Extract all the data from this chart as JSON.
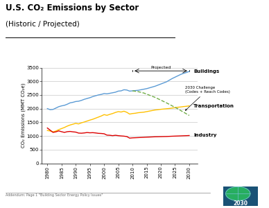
{
  "title_main": "U.S. CO₂ Emissions by Sector",
  "title_sub": "(Historic / Projected)",
  "ylabel": "CO₂ Emissions (MMT CO₂e)",
  "footer": "Addendum: Page 1 \"Building Sector Energy Policy Issues\"",
  "xlim": [
    1978,
    2033
  ],
  "ylim": [
    0,
    3500
  ],
  "yticks": [
    0,
    500,
    1000,
    1500,
    2000,
    2500,
    3000,
    3500
  ],
  "xticks": [
    1980,
    1985,
    1990,
    1995,
    2000,
    2005,
    2010,
    2015,
    2020,
    2025,
    2030
  ],
  "projected_start": 2010,
  "buildings_years": [
    1980,
    1981,
    1982,
    1983,
    1984,
    1985,
    1986,
    1987,
    1988,
    1989,
    1990,
    1991,
    1992,
    1993,
    1994,
    1995,
    1996,
    1997,
    1998,
    1999,
    2000,
    2001,
    2002,
    2003,
    2004,
    2005,
    2006,
    2007,
    2008,
    2009,
    2010,
    2011,
    2012,
    2013,
    2014,
    2015,
    2016,
    2017,
    2018,
    2019,
    2020,
    2021,
    2022,
    2023,
    2024,
    2025,
    2026,
    2027,
    2028,
    2029,
    2030
  ],
  "buildings_values": [
    2000,
    1960,
    1970,
    2020,
    2070,
    2100,
    2120,
    2160,
    2210,
    2230,
    2260,
    2270,
    2300,
    2340,
    2370,
    2400,
    2440,
    2470,
    2500,
    2520,
    2550,
    2540,
    2560,
    2580,
    2600,
    2640,
    2650,
    2690,
    2680,
    2640,
    2650,
    2660,
    2670,
    2690,
    2710,
    2730,
    2760,
    2790,
    2820,
    2860,
    2900,
    2940,
    2980,
    3040,
    3100,
    3150,
    3200,
    3250,
    3290,
    3320,
    3360
  ],
  "buildings_color": "#5b9bd5",
  "transportation_years": [
    1980,
    1981,
    1982,
    1983,
    1984,
    1985,
    1986,
    1987,
    1988,
    1989,
    1990,
    1991,
    1992,
    1993,
    1994,
    1995,
    1996,
    1997,
    1998,
    1999,
    2000,
    2001,
    2002,
    2003,
    2004,
    2005,
    2006,
    2007,
    2008,
    2009,
    2010,
    2011,
    2012,
    2013,
    2014,
    2015,
    2016,
    2017,
    2018,
    2019,
    2020,
    2021,
    2022,
    2023,
    2024,
    2025,
    2026,
    2027,
    2028,
    2029,
    2030
  ],
  "transportation_values": [
    1200,
    1180,
    1150,
    1180,
    1230,
    1270,
    1310,
    1360,
    1400,
    1430,
    1460,
    1440,
    1480,
    1510,
    1545,
    1580,
    1610,
    1650,
    1690,
    1730,
    1780,
    1755,
    1790,
    1820,
    1860,
    1890,
    1875,
    1905,
    1865,
    1800,
    1820,
    1830,
    1850,
    1860,
    1870,
    1890,
    1910,
    1930,
    1950,
    1960,
    1975,
    1985,
    1995,
    2005,
    2020,
    2035,
    2050,
    2060,
    2075,
    2085,
    2100
  ],
  "transportation_color": "#ffc000",
  "industry_years": [
    1980,
    1981,
    1982,
    1983,
    1984,
    1985,
    1986,
    1987,
    1988,
    1989,
    1990,
    1991,
    1992,
    1993,
    1994,
    1995,
    1996,
    1997,
    1998,
    1999,
    2000,
    2001,
    2002,
    2003,
    2004,
    2005,
    2006,
    2007,
    2008,
    2009,
    2010,
    2011,
    2012,
    2013,
    2014,
    2015,
    2016,
    2017,
    2018,
    2019,
    2020,
    2021,
    2022,
    2023,
    2024,
    2025,
    2026,
    2027,
    2028,
    2029,
    2030
  ],
  "industry_values": [
    1290,
    1210,
    1130,
    1150,
    1185,
    1155,
    1130,
    1155,
    1165,
    1150,
    1140,
    1105,
    1100,
    1110,
    1125,
    1115,
    1120,
    1110,
    1095,
    1090,
    1080,
    1030,
    1025,
    1010,
    1025,
    1010,
    1000,
    992,
    978,
    920,
    930,
    935,
    940,
    945,
    950,
    955,
    960,
    965,
    970,
    972,
    975,
    978,
    980,
    985,
    990,
    994,
    998,
    1002,
    1006,
    1010,
    1015
  ],
  "industry_color": "#dd0000",
  "challenge_years": [
    2010,
    2012,
    2014,
    2016,
    2018,
    2020,
    2022,
    2024,
    2026,
    2028,
    2030
  ],
  "challenge_values": [
    2650,
    2620,
    2570,
    2490,
    2410,
    2310,
    2210,
    2100,
    1990,
    1870,
    1750
  ],
  "challenge_color": "#70ad47",
  "bg_color": "#ffffff",
  "grid_color": "#c8c8c8",
  "title_fontsize": 8.5,
  "subtitle_fontsize": 7.5,
  "tick_fontsize": 5,
  "ylabel_fontsize": 5
}
